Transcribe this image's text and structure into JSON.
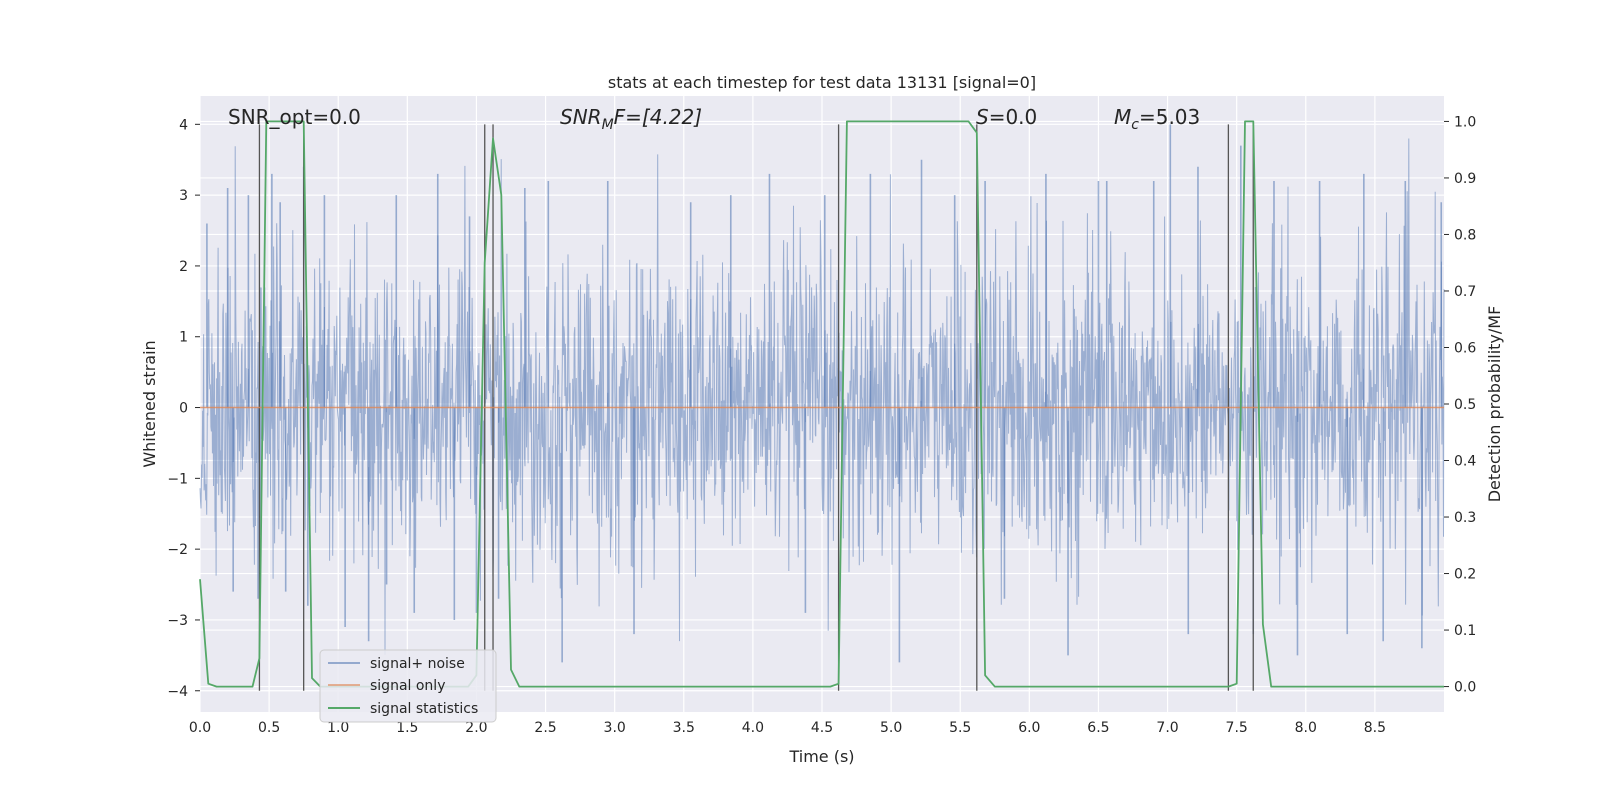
{
  "chart_data": {
    "type": "line",
    "title": "stats at each timestep for test data 13131 [signal=0]",
    "xlabel": "Time (s)",
    "ylabel": "Whitened strain",
    "y2label": "Detection probability/MF",
    "xlim": [
      0.0,
      9.0
    ],
    "ylim": [
      -4.3,
      4.4
    ],
    "y2lim": [
      -0.045,
      1.045
    ],
    "xticks": [
      "0.0",
      "0.5",
      "1.0",
      "1.5",
      "2.0",
      "2.5",
      "3.0",
      "3.5",
      "4.0",
      "4.5",
      "5.0",
      "5.5",
      "6.0",
      "6.5",
      "7.0",
      "7.5",
      "8.0",
      "8.5"
    ],
    "yticks": [
      "4",
      "3",
      "2",
      "1",
      "0",
      "−1",
      "−2",
      "−3",
      "−4"
    ],
    "y2ticks": [
      "1.0",
      "0.9",
      "0.8",
      "0.7",
      "0.6",
      "0.5",
      "0.4",
      "0.3",
      "0.2",
      "0.1",
      "0.0"
    ],
    "grid": true,
    "legend_position": "lower-left",
    "annotations": {
      "snr_opt": "SNR_opt=0.0",
      "snr_mf_main": "SNR",
      "snr_mf_sub": "M",
      "snr_mf_rest": "F=[4.22]",
      "s_main": "S",
      "s_rest": "=0.0",
      "mc_main": "M",
      "mc_sub": "c",
      "mc_rest": "=5.03"
    },
    "vertical_lines": [
      0.43,
      0.75,
      2.06,
      2.12,
      4.62,
      5.62,
      7.44,
      7.62
    ],
    "series": [
      {
        "name": "signal+ noise",
        "color": "#4c72b0",
        "kind": "noise",
        "amplitude_range": [
          -3.8,
          3.8
        ],
        "spike_samples": [
          [
            0.05,
            2.6
          ],
          [
            0.2,
            3.1
          ],
          [
            0.24,
            -2.6
          ],
          [
            0.35,
            3.0
          ],
          [
            0.42,
            -2.7
          ],
          [
            0.52,
            3.3
          ],
          [
            0.58,
            2.9
          ],
          [
            0.62,
            -2.6
          ],
          [
            0.75,
            3.4
          ],
          [
            0.78,
            -2.8
          ],
          [
            0.9,
            3.0
          ],
          [
            1.05,
            -3.1
          ],
          [
            1.22,
            -3.3
          ],
          [
            1.35,
            -2.5
          ],
          [
            1.42,
            3.0
          ],
          [
            1.55,
            -2.9
          ],
          [
            1.72,
            3.3
          ],
          [
            1.84,
            -3.0
          ],
          [
            1.95,
            2.7
          ],
          [
            2.0,
            -2.9
          ],
          [
            2.16,
            -2.7
          ],
          [
            2.35,
            3.1
          ],
          [
            2.52,
            3.2
          ],
          [
            2.62,
            -3.6
          ],
          [
            2.95,
            3.2
          ],
          [
            3.14,
            -3.2
          ],
          [
            3.55,
            2.9
          ],
          [
            3.84,
            3.0
          ],
          [
            4.12,
            3.3
          ],
          [
            4.38,
            -2.9
          ],
          [
            4.52,
            3.0
          ],
          [
            4.85,
            3.3
          ],
          [
            5.06,
            -3.6
          ],
          [
            5.22,
            3.5
          ],
          [
            5.46,
            3.0
          ],
          [
            5.68,
            3.2
          ],
          [
            5.82,
            -2.7
          ],
          [
            6.12,
            3.3
          ],
          [
            6.28,
            -3.5
          ],
          [
            6.5,
            3.2
          ],
          [
            6.56,
            3.2
          ],
          [
            6.9,
            3.2
          ],
          [
            7.02,
            4.0
          ],
          [
            7.15,
            -3.2
          ],
          [
            7.22,
            3.4
          ],
          [
            7.53,
            3.7
          ],
          [
            7.62,
            -3.2
          ],
          [
            7.77,
            3.2
          ],
          [
            7.94,
            -3.5
          ],
          [
            8.1,
            3.2
          ],
          [
            8.3,
            -3.2
          ],
          [
            8.42,
            3.3
          ],
          [
            8.56,
            -3.3
          ],
          [
            8.72,
            3.2
          ],
          [
            8.84,
            -3.4
          ],
          [
            8.98,
            2.9
          ]
        ]
      },
      {
        "name": "signal only",
        "color": "#dd8452",
        "x": [
          0.0,
          9.0
        ],
        "y": [
          0.0,
          0.0
        ]
      },
      {
        "name": "signal statistics",
        "color": "#55a868",
        "axis": "y2",
        "x": [
          0.0,
          0.06,
          0.12,
          0.18,
          0.38,
          0.43,
          0.48,
          0.75,
          0.81,
          0.87,
          1.94,
          2.0,
          2.06,
          2.12,
          2.18,
          2.25,
          2.31,
          4.56,
          4.62,
          4.68,
          5.56,
          5.62,
          5.68,
          5.75,
          7.44,
          7.5,
          7.56,
          7.62,
          7.69,
          7.75,
          9.0
        ],
        "y": [
          0.19,
          0.005,
          0.0,
          0.0,
          0.0,
          0.05,
          1.0,
          1.0,
          0.015,
          0.0,
          0.0,
          0.02,
          0.75,
          0.97,
          0.87,
          0.03,
          0.0,
          0.0,
          0.005,
          1.0,
          1.0,
          0.98,
          0.02,
          0.0,
          0.0,
          0.005,
          1.0,
          1.0,
          0.11,
          0.0,
          0.0
        ]
      }
    ]
  }
}
